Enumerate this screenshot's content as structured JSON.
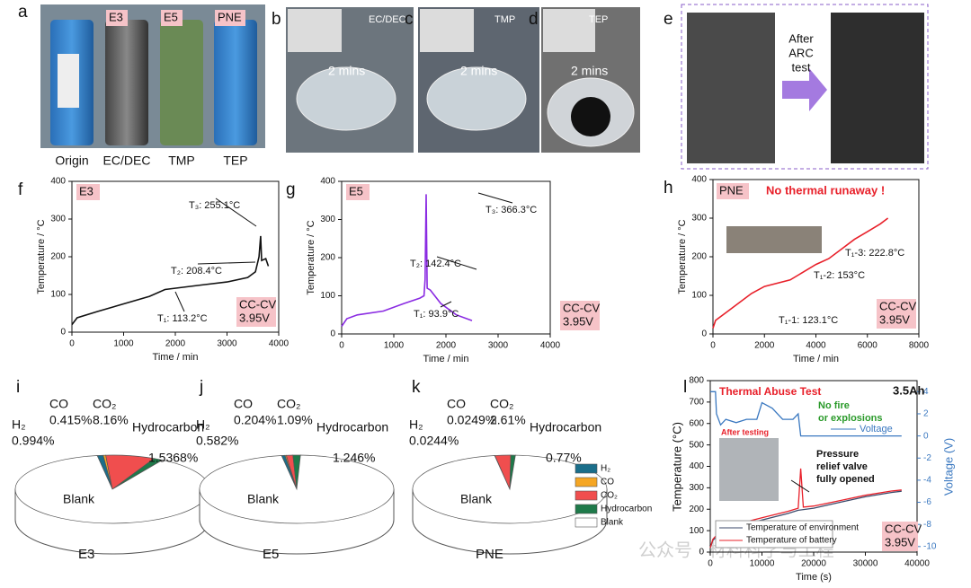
{
  "photos": {
    "a": {
      "label": "a",
      "tags": [
        "E3",
        "E5",
        "PNE"
      ],
      "captions": [
        "Origin",
        "EC/DEC",
        "TMP",
        "TEP"
      ]
    },
    "b": {
      "label": "b",
      "solvent": "EC/DEC",
      "time": "2 mins"
    },
    "c": {
      "label": "c",
      "solvent": "TMP",
      "time": "2 mins"
    },
    "d": {
      "label": "d",
      "solvent": "TEP",
      "time": "2 mins"
    },
    "e": {
      "label": "e",
      "arrow_text": [
        "After",
        "ARC",
        "test"
      ]
    }
  },
  "chart_data": [
    {
      "type": "line",
      "label": "f",
      "tag": "E3",
      "xlabel": "Time / min",
      "ylabel": "Temperature / °C",
      "xlim": [
        0,
        4000
      ],
      "ylim": [
        0,
        400
      ],
      "xticks": [
        0,
        1000,
        2000,
        3000,
        4000
      ],
      "yticks": [
        0,
        100,
        200,
        300,
        400
      ],
      "series": [
        {
          "color": "#111111",
          "x": [
            0,
            100,
            500,
            1000,
            1500,
            1800,
            2500,
            3000,
            3400,
            3550,
            3620,
            3650,
            3670,
            3750,
            3800
          ],
          "values": [
            20,
            38,
            55,
            75,
            95,
            113,
            125,
            133,
            145,
            160,
            200,
            255,
            190,
            195,
            175
          ]
        }
      ],
      "annotations": [
        "T₁: 113.2°C",
        "T₂: 208.4°C",
        "T₃: 255.1°C"
      ],
      "condition": [
        "CC-CV",
        "3.95V"
      ]
    },
    {
      "type": "line",
      "label": "g",
      "tag": "E5",
      "xlabel": "Time / min",
      "ylabel": "Temperature / °C",
      "xlim": [
        0,
        4000
      ],
      "ylim": [
        0,
        400
      ],
      "xticks": [
        0,
        1000,
        2000,
        3000,
        4000
      ],
      "yticks": [
        0,
        100,
        200,
        300,
        400
      ],
      "series": [
        {
          "color": "#8a2be2",
          "x": [
            0,
            100,
            300,
            800,
            1200,
            1500,
            1580,
            1600,
            1620,
            1640,
            1700,
            1900,
            2200,
            2500
          ],
          "values": [
            20,
            40,
            50,
            60,
            80,
            94,
            100,
            142,
            366,
            120,
            115,
            80,
            50,
            35
          ]
        }
      ],
      "annotations": [
        "T₁: 93.9°C",
        "T₂: 142.4°C",
        "T₃: 366.3°C"
      ],
      "condition": [
        "CC-CV",
        "3.95V"
      ]
    },
    {
      "type": "line",
      "label": "h",
      "tag": "PNE",
      "note": "No thermal runaway !",
      "xlabel": "Time / min",
      "ylabel": "Temperature / °C",
      "xlim": [
        0,
        8000
      ],
      "ylim": [
        0,
        400
      ],
      "xticks": [
        0,
        2000,
        4000,
        6000,
        8000
      ],
      "yticks": [
        0,
        100,
        200,
        300,
        400
      ],
      "series": [
        {
          "color": "#e8202a",
          "x": [
            0,
            100,
            500,
            1000,
            1500,
            2000,
            3000,
            3500,
            4000,
            4500,
            5000,
            5500,
            6000,
            6500,
            6800
          ],
          "values": [
            15,
            35,
            55,
            80,
            105,
            123,
            140,
            160,
            180,
            195,
            220,
            245,
            265,
            285,
            300
          ]
        }
      ],
      "annotations": [
        "T₁-1: 123.1°C",
        "T₁-2: 153°C",
        "T₁-3: 222.8°C"
      ],
      "condition": [
        "CC-CV",
        "3.95V"
      ]
    },
    {
      "type": "pie",
      "label": "i",
      "title": "E3",
      "categories": [
        "H₂",
        "CO",
        "CO₂",
        "Hydrocarbon",
        "Blank"
      ],
      "values": [
        0.994,
        0.415,
        8.16,
        1.5368,
        88.894
      ],
      "value_labels": [
        "0.994%",
        "0.415%",
        "8.16%",
        "1.5368%",
        null
      ],
      "colors": [
        "#1a6e8a",
        "#f5a623",
        "#f04e4e",
        "#1e7a4a",
        "#ffffff"
      ]
    },
    {
      "type": "pie",
      "label": "j",
      "title": "E5",
      "categories": [
        "H₂",
        "CO",
        "CO₂",
        "Hydrocarbon",
        "Blank"
      ],
      "values": [
        0.582,
        0.204,
        1.09,
        1.246,
        96.878
      ],
      "value_labels": [
        "0.582%",
        "0.204%",
        "1.09%",
        "1.246%",
        null
      ],
      "colors": [
        "#1a6e8a",
        "#f5a623",
        "#f04e4e",
        "#1e7a4a",
        "#ffffff"
      ]
    },
    {
      "type": "pie",
      "label": "k",
      "title": "PNE",
      "legend": true,
      "categories": [
        "H₂",
        "CO",
        "CO₂",
        "Hydrocarbon",
        "Blank"
      ],
      "values": [
        0.0244,
        0.0249,
        2.61,
        0.77,
        96.571
      ],
      "value_labels": [
        "0.0244%",
        "0.0249%",
        "2.61%",
        "0.77%",
        null
      ],
      "colors": [
        "#1a6e8a",
        "#f5a623",
        "#f04e4e",
        "#1e7a4a",
        "#ffffff"
      ]
    },
    {
      "type": "dual",
      "label": "l",
      "title": "Thermal Abuse Test",
      "capacity": "3.5Ah",
      "xlabel": "Time (s)",
      "ylabel": "Temperature (°C)",
      "y2label": "Voltage (V)",
      "xlim": [
        0,
        40000
      ],
      "ylim": [
        0,
        800
      ],
      "y2lim": [
        -10.5,
        5
      ],
      "xticks": [
        0,
        10000,
        20000,
        30000,
        40000
      ],
      "yticks": [
        0,
        100,
        200,
        300,
        400,
        500,
        600,
        700,
        800
      ],
      "y2ticks": [
        4,
        2,
        0,
        -2,
        -4,
        -6,
        -8,
        -10
      ],
      "series": [
        {
          "name": "Temperature of environment",
          "color": "#3b4a6b",
          "x": [
            0,
            500,
            2000,
            5000,
            10000,
            15000,
            17000,
            20000,
            25000,
            30000,
            35000,
            37000
          ],
          "values": [
            20,
            55,
            90,
            120,
            150,
            180,
            195,
            205,
            232,
            258,
            278,
            284
          ]
        },
        {
          "name": "Temperature of battery",
          "color": "#e8202a",
          "x": [
            0,
            500,
            2000,
            5000,
            10000,
            15000,
            17000,
            17500,
            18000,
            20000,
            25000,
            30000,
            35000,
            37000
          ],
          "values": [
            20,
            60,
            100,
            130,
            160,
            190,
            205,
            390,
            210,
            215,
            240,
            265,
            285,
            290
          ]
        },
        {
          "name": "Voltage",
          "color": "#3a78c0",
          "axis": "y2",
          "x": [
            0,
            1000,
            1200,
            2000,
            3000,
            5000,
            7000,
            9000,
            10000,
            12000,
            14000,
            16000,
            17000,
            17500,
            20000,
            37000
          ],
          "values": [
            4,
            4,
            2,
            1,
            1.5,
            1.2,
            1.5,
            1.5,
            3,
            2.5,
            1.5,
            1.5,
            2,
            0,
            0,
            0
          ]
        }
      ],
      "note": [
        "No fire",
        "or explosions"
      ],
      "photo_label": "After testing",
      "annotation": [
        "Pressure",
        "relief valve",
        "fully opened"
      ],
      "condition": [
        "CC-CV",
        "3.95V"
      ]
    }
  ],
  "watermark": "公众号 · 材料科学与工程"
}
